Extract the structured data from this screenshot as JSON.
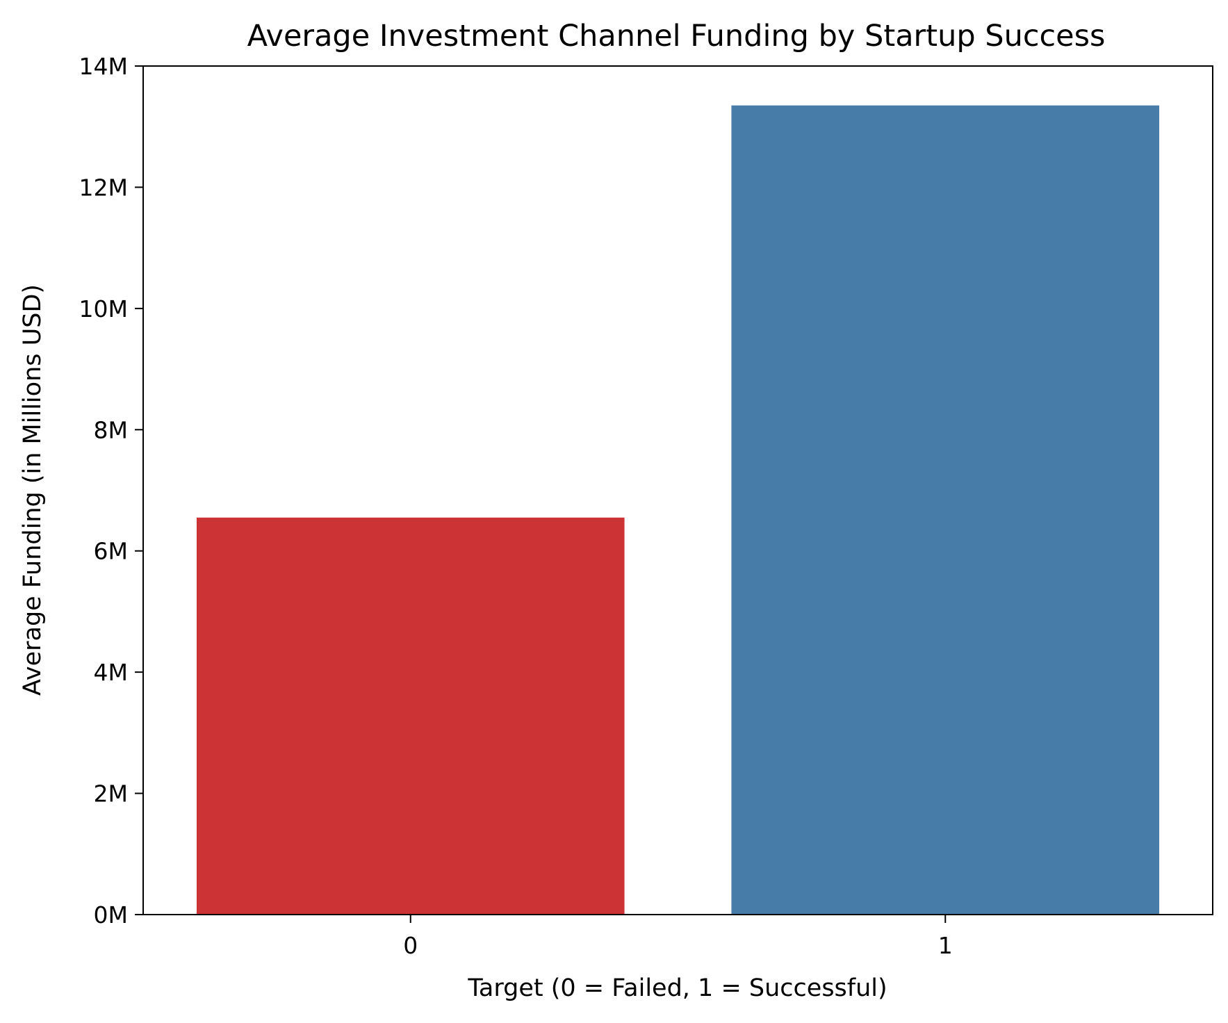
{
  "chart_data": {
    "type": "bar",
    "title": "Average Investment Channel Funding by Startup Success",
    "xlabel": "Target (0 = Failed, 1 = Successful)",
    "ylabel": "Average Funding (in Millions USD)",
    "categories": [
      "0",
      "1"
    ],
    "values": [
      6550000,
      13350000
    ],
    "bar_colors": [
      "#cb3335",
      "#477ca8"
    ],
    "ylim": [
      0,
      14000000
    ],
    "yticks": [
      0,
      2000000,
      4000000,
      6000000,
      8000000,
      10000000,
      12000000,
      14000000
    ],
    "ytick_labels": [
      "0M",
      "2M",
      "4M",
      "6M",
      "8M",
      "10M",
      "12M",
      "14M"
    ],
    "grid": false,
    "legend": false
  }
}
